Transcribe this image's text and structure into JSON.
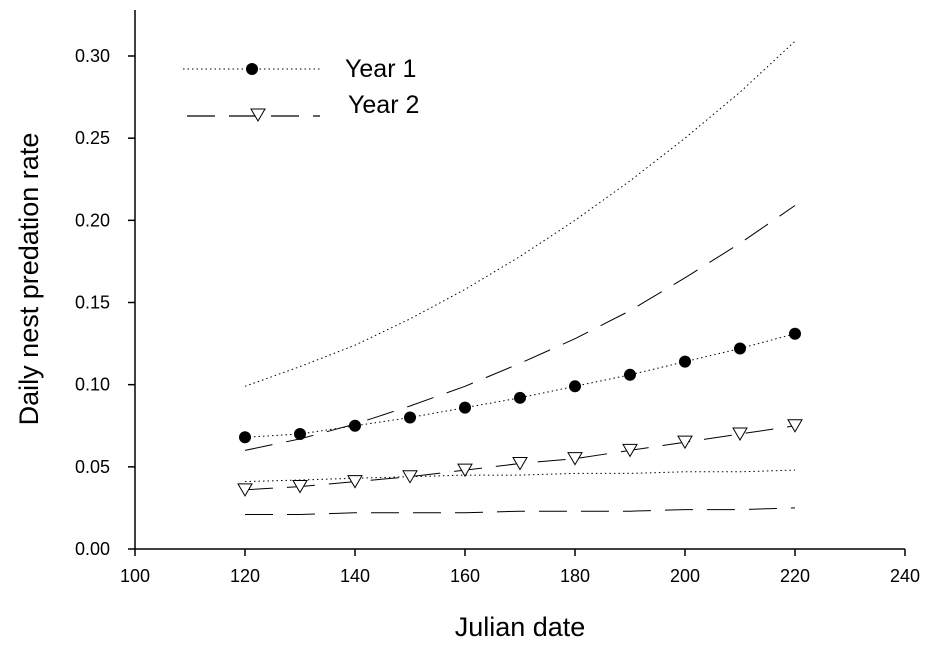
{
  "chart_data": {
    "type": "line",
    "xlabel": "Julian date",
    "ylabel": "Daily nest predation rate",
    "xlim": [
      100,
      240
    ],
    "ylim": [
      0.0,
      0.32
    ],
    "x_ticks": [
      "100",
      "120",
      "140",
      "160",
      "180",
      "200",
      "220",
      "240"
    ],
    "y_ticks": [
      "0.00",
      "0.05",
      "0.10",
      "0.15",
      "0.20",
      "0.25",
      "0.30"
    ],
    "grid": false,
    "legend_position": "top-left",
    "series": [
      {
        "name": "Year 1",
        "marker": "filled-circle",
        "line_style": "dotted",
        "x": [
          120,
          130,
          140,
          150,
          160,
          170,
          180,
          190,
          200,
          210,
          220
        ],
        "y": [
          0.068,
          0.07,
          0.075,
          0.08,
          0.086,
          0.092,
          0.099,
          0.106,
          0.114,
          0.122,
          0.131
        ]
      },
      {
        "name": "Year 2",
        "marker": "open-triangle-down",
        "line_style": "dashed",
        "x": [
          120,
          130,
          140,
          150,
          160,
          170,
          180,
          190,
          200,
          210,
          220
        ],
        "y": [
          0.036,
          0.038,
          0.041,
          0.044,
          0.048,
          0.052,
          0.055,
          0.06,
          0.065,
          0.07,
          0.075
        ]
      }
    ],
    "confidence_bands": [
      {
        "series": "Year 1",
        "bound": "upper",
        "line_style": "dotted",
        "x": [
          120,
          130,
          140,
          150,
          160,
          170,
          180,
          190,
          200,
          210,
          220
        ],
        "y": [
          0.099,
          0.111,
          0.124,
          0.14,
          0.158,
          0.178,
          0.2,
          0.224,
          0.25,
          0.278,
          0.309
        ]
      },
      {
        "series": "Year 1",
        "bound": "lower",
        "line_style": "dotted",
        "x": [
          120,
          130,
          140,
          150,
          160,
          170,
          180,
          190,
          200,
          210,
          220
        ],
        "y": [
          0.041,
          0.042,
          0.043,
          0.044,
          0.045,
          0.045,
          0.046,
          0.046,
          0.047,
          0.047,
          0.048
        ]
      },
      {
        "series": "Year 2",
        "bound": "upper",
        "line_style": "dashed",
        "x": [
          120,
          130,
          140,
          150,
          160,
          170,
          180,
          190,
          200,
          210,
          220
        ],
        "y": [
          0.06,
          0.067,
          0.076,
          0.087,
          0.099,
          0.113,
          0.128,
          0.145,
          0.165,
          0.186,
          0.209
        ]
      },
      {
        "series": "Year 2",
        "bound": "lower",
        "line_style": "dashed",
        "x": [
          120,
          130,
          140,
          150,
          160,
          170,
          180,
          190,
          200,
          210,
          220
        ],
        "y": [
          0.021,
          0.021,
          0.022,
          0.022,
          0.022,
          0.023,
          0.023,
          0.023,
          0.024,
          0.024,
          0.025
        ]
      }
    ]
  }
}
